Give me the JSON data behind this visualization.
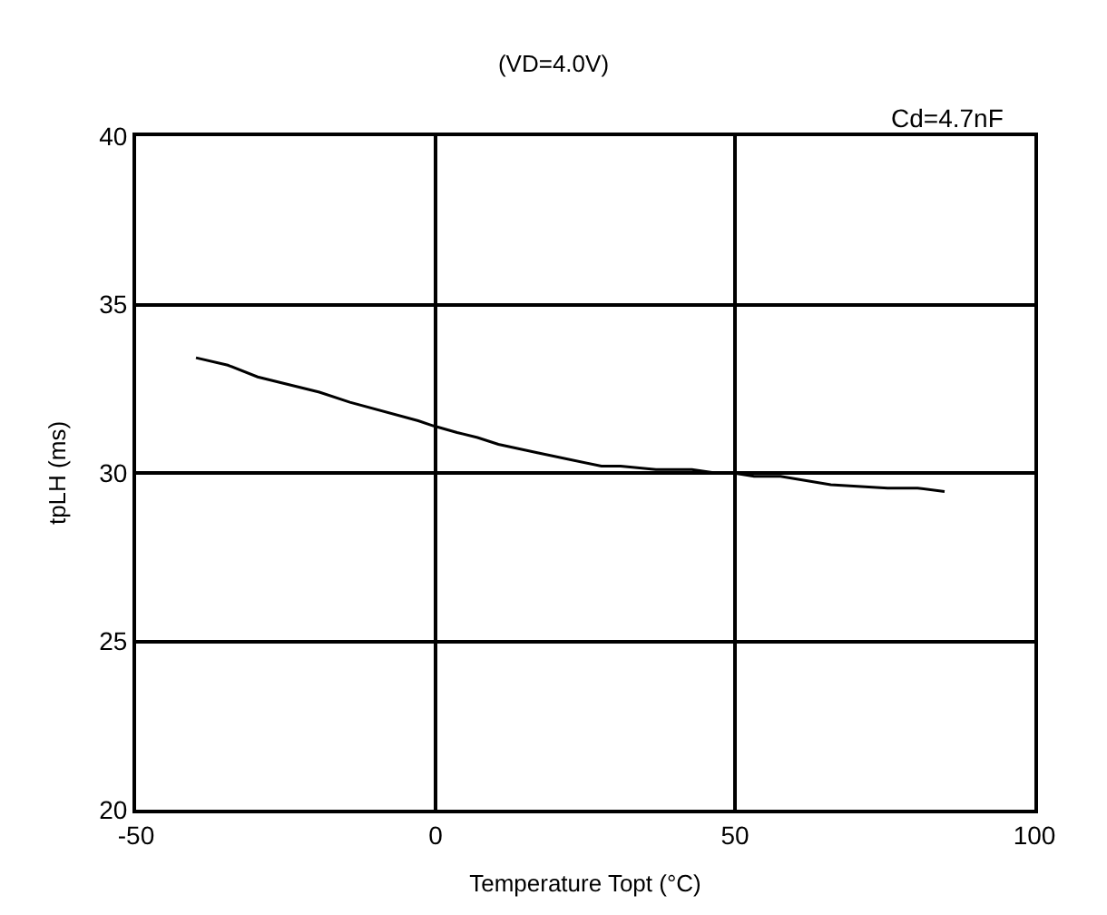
{
  "chart_data": {
    "type": "line",
    "title": "(VD=4.0V)",
    "xlabel": "Temperature Topt (°C)",
    "ylabel": "tpLH (ms)",
    "annotations": [
      "Cd=4.7nF"
    ],
    "x": [
      -40,
      -34.7,
      -29.7,
      -19.4,
      -14.3,
      -2.9,
      -0.4,
      3.6,
      7,
      10.5,
      17,
      27.7,
      30.9,
      36.8,
      42.8,
      46.7,
      49.7,
      53.2,
      57.6,
      66,
      75.5,
      80.5,
      85
    ],
    "series": [
      {
        "color": "#000000",
        "values": [
          33.42,
          33.2,
          32.85,
          32.4,
          32.1,
          31.55,
          31.4,
          31.2,
          31.05,
          30.85,
          30.6,
          30.2,
          30.2,
          30.1,
          30.1,
          30.0,
          30.0,
          29.9,
          29.9,
          29.65,
          29.55,
          29.55,
          29.45
        ]
      }
    ],
    "xlim": [
      -50,
      100
    ],
    "xticks": [
      -50,
      0,
      50,
      100
    ],
    "ylim": [
      20,
      40
    ],
    "yticks": [
      20,
      25,
      30,
      35,
      40
    ],
    "grid": true,
    "legend": false,
    "marker": "none",
    "line_style": "solid"
  }
}
